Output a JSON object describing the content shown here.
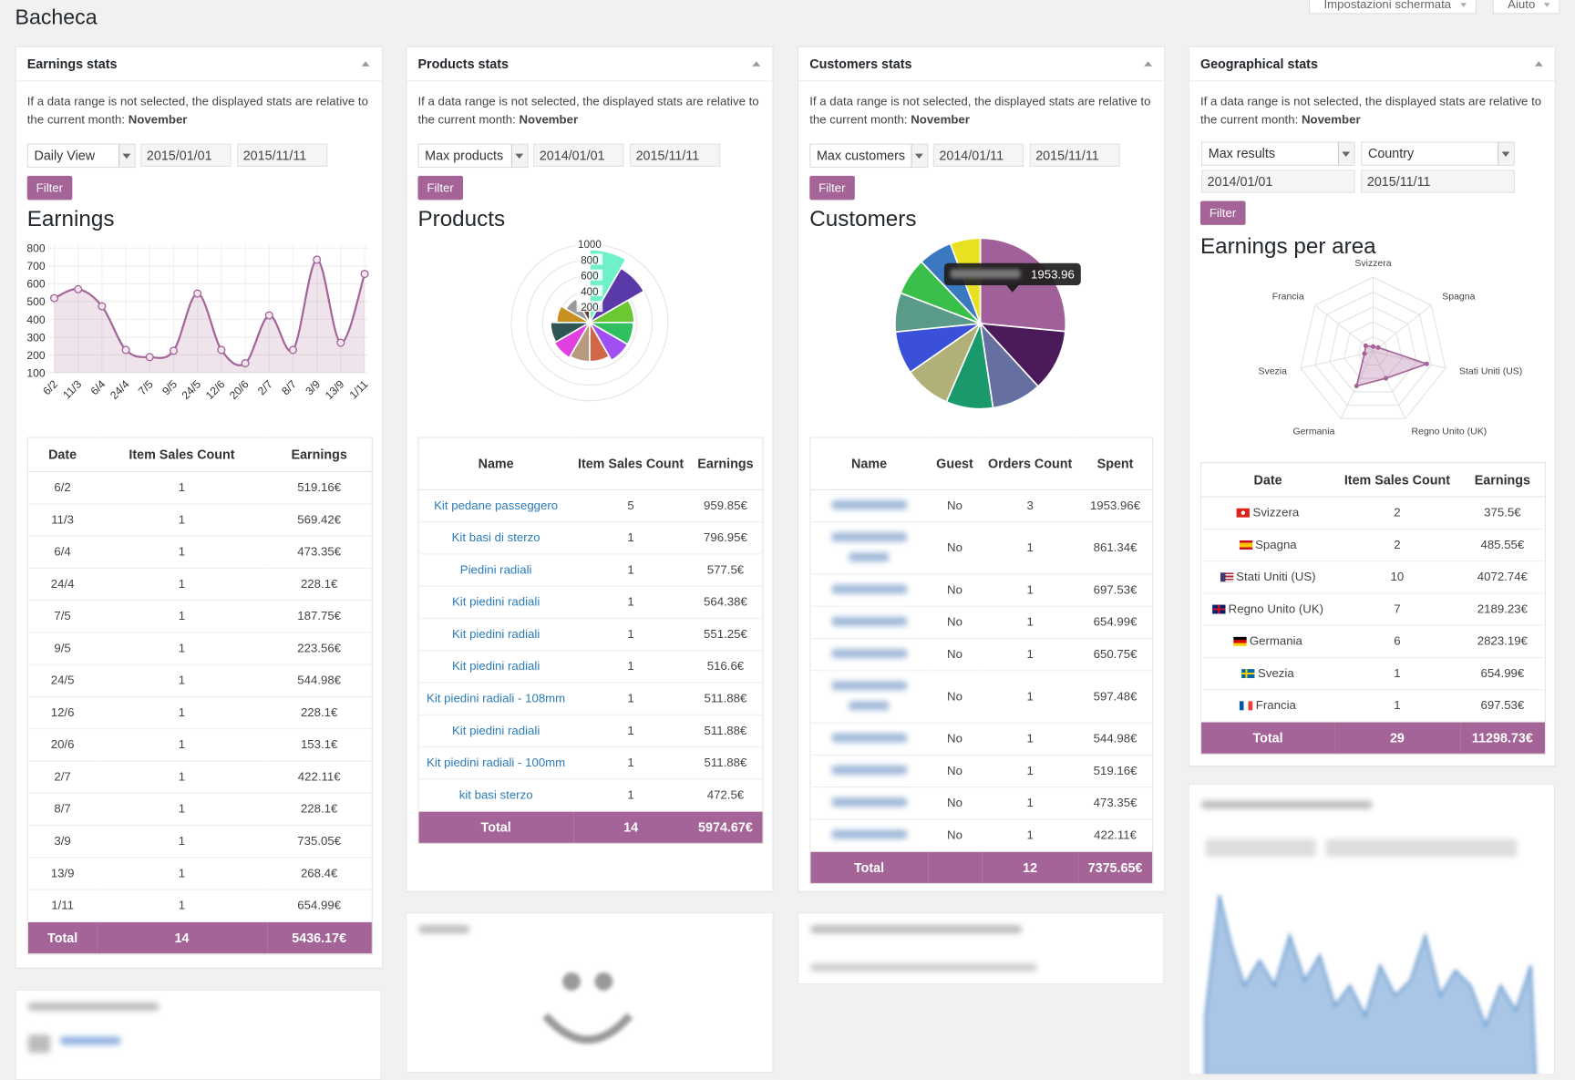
{
  "page": {
    "title": "Bacheca",
    "buttons": [
      "Impostazioni schermata",
      "Aiuto"
    ]
  },
  "panels": [
    {
      "title": "Earnings stats",
      "note": "If a data range is not selected, the displayed stats are relative to the current month:",
      "month": "November",
      "selects": [
        "Daily View"
      ],
      "dates": [
        "2015/01/01",
        "2015/11/11"
      ],
      "button": "Filter",
      "columns": [
        "Date",
        "Item Sales Count",
        "Earnings"
      ],
      "rows": [
        [
          "6/2",
          "1",
          "519.16€"
        ],
        [
          "11/3",
          "1",
          "569.42€"
        ],
        [
          "6/4",
          "1",
          "473.35€"
        ],
        [
          "24/4",
          "1",
          "228.1€"
        ],
        [
          "7/5",
          "1",
          "187.75€"
        ],
        [
          "9/5",
          "1",
          "223.56€"
        ],
        [
          "24/5",
          "1",
          "544.98€"
        ],
        [
          "12/6",
          "1",
          "228.1€"
        ],
        [
          "20/6",
          "1",
          "153.1€"
        ],
        [
          "2/7",
          "1",
          "422.11€"
        ],
        [
          "8/7",
          "1",
          "228.1€"
        ],
        [
          "3/9",
          "1",
          "735.05€"
        ],
        [
          "13/9",
          "1",
          "268.4€"
        ],
        [
          "1/11",
          "1",
          "654.99€"
        ]
      ],
      "total": [
        "Total",
        "14",
        "5436.17€"
      ]
    },
    {
      "title": "Products stats",
      "note": "If a data range is not selected, the displayed stats are relative to the current month:",
      "month": "November",
      "selects": [
        "Max products"
      ],
      "dates": [
        "2014/01/01",
        "2015/11/11"
      ],
      "button": "Filter",
      "columns": [
        "Name",
        "Item Sales Count",
        "Earnings"
      ],
      "rows": [
        [
          "Kit pedane passeggero",
          "5",
          "959.85€"
        ],
        [
          "Kit basi di sterzo",
          "1",
          "796.95€"
        ],
        [
          "Piedini radiali",
          "1",
          "577.5€"
        ],
        [
          "Kit piedini radiali",
          "1",
          "564.38€"
        ],
        [
          "Kit piedini radiali",
          "1",
          "551.25€"
        ],
        [
          "Kit piedini radiali",
          "1",
          "516.6€"
        ],
        [
          "Kit piedini radiali - 108mm",
          "1",
          "511.88€"
        ],
        [
          "Kit piedini radiali",
          "1",
          "511.88€"
        ],
        [
          "Kit piedini radiali - 100mm",
          "1",
          "511.88€"
        ],
        [
          "kit basi sterzo",
          "1",
          "472.5€"
        ]
      ],
      "total": [
        "Total",
        "14",
        "5974.67€"
      ]
    },
    {
      "title": "Customers stats",
      "note": "If a data range is not selected, the displayed stats are relative to the current month:",
      "month": "November",
      "selects": [
        "Max customers"
      ],
      "dates": [
        "2014/01/11",
        "2015/11/11"
      ],
      "button": "Filter",
      "columns": [
        "Name",
        "Guest",
        "Orders Count",
        "Spent"
      ],
      "rows": [
        [
          "No",
          "3",
          "1953.96€"
        ],
        [
          "No",
          "1",
          "861.34€"
        ],
        [
          "No",
          "1",
          "697.53€"
        ],
        [
          "No",
          "1",
          "654.99€"
        ],
        [
          "No",
          "1",
          "650.75€"
        ],
        [
          "No",
          "1",
          "597.48€"
        ],
        [
          "No",
          "1",
          "544.98€"
        ],
        [
          "No",
          "1",
          "519.16€"
        ],
        [
          "No",
          "1",
          "473.35€"
        ],
        [
          "No",
          "1",
          "422.11€"
        ]
      ],
      "total": [
        "Total",
        "12",
        "7375.65€"
      ]
    },
    {
      "title": "Geographical stats",
      "note": "If a data range is not selected, the displayed stats are relative to the current month:",
      "month": "November",
      "selects": [
        "Max results",
        "Country"
      ],
      "dates": [
        "2014/01/01",
        "2015/11/11"
      ],
      "button": "Filter",
      "columns": [
        "Date",
        "Item Sales Count",
        "Earnings"
      ],
      "rows": [
        [
          "Svizzera",
          "2",
          "375.5€"
        ],
        [
          "Spagna",
          "2",
          "485.55€"
        ],
        [
          "Stati Uniti (US)",
          "10",
          "4072.74€"
        ],
        [
          "Regno Unito (UK)",
          "7",
          "2189.23€"
        ],
        [
          "Germania",
          "6",
          "2823.19€"
        ],
        [
          "Svezia",
          "1",
          "654.99€"
        ],
        [
          "Francia",
          "1",
          "697.53€"
        ]
      ],
      "total": [
        "Total",
        "29",
        "11298.73€"
      ]
    }
  ],
  "chart_data": [
    {
      "type": "line",
      "title": "Earnings",
      "categories": [
        "6/2",
        "11/3",
        "6/4",
        "24/4",
        "7/5",
        "9/5",
        "24/5",
        "12/6",
        "20/6",
        "2/7",
        "8/7",
        "3/9",
        "13/9",
        "1/11"
      ],
      "values": [
        519.16,
        569.42,
        473.35,
        228.1,
        187.75,
        223.56,
        544.98,
        228.1,
        153.1,
        422.11,
        228.1,
        735.05,
        268.4,
        654.99
      ],
      "color": "#a46497",
      "ylim": [
        100,
        800
      ],
      "yticks": [
        100,
        200,
        300,
        400,
        500,
        600,
        700,
        800
      ],
      "grid": true
    },
    {
      "type": "polar",
      "title": "Products",
      "values": [
        930,
        800,
        570,
        560,
        560,
        500,
        500,
        520,
        500,
        420,
        350,
        220
      ],
      "colors": [
        "#6ef0c8",
        "#5a3aa8",
        "#6cc832",
        "#30c060",
        "#a050f0",
        "#d06848",
        "#b89a80",
        "#e040e0",
        "#2f5555",
        "#c8901e",
        "#9a9a9a",
        "#5a3a2a"
      ],
      "ylim": [
        0,
        1000
      ],
      "yticks": [
        200,
        400,
        600,
        800,
        1000
      ],
      "grid": true
    },
    {
      "type": "pie",
      "title": "Customers",
      "values": [
        1953.96,
        861.34,
        697.53,
        654.99,
        650.75,
        597.48,
        544.98,
        519.16,
        473.35,
        422.11
      ],
      "colors": [
        "#a0609a",
        "#4a1a5a",
        "#6670a0",
        "#1a9a6a",
        "#b0b078",
        "#3a50d8",
        "#5a9a88",
        "#3ac04a",
        "#3a78c0",
        "#e8e020"
      ]
    },
    {
      "type": "radar",
      "title": "Earnings per area",
      "categories": [
        "Svizzera",
        "Spagna",
        "Stati Uniti (US)",
        "Regno Unito (UK)",
        "Germania",
        "Svezia",
        "Francia"
      ],
      "values": [
        375.5,
        485.55,
        4072.74,
        2189.23,
        2823.19,
        654.99,
        697.53
      ],
      "color": "#a46497",
      "ylim": [
        0,
        5500
      ]
    }
  ]
}
